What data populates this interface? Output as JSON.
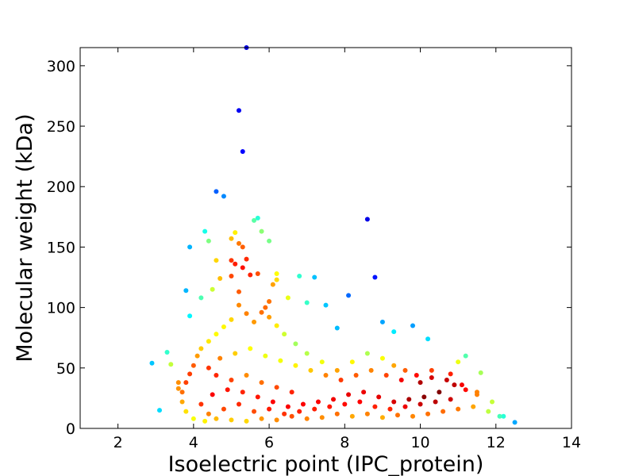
{
  "chart_data": {
    "type": "scatter",
    "title": "",
    "xlabel": "Isoelectric point (IPC_protein)",
    "ylabel": "Molecular weight (kDa)",
    "xlim": [
      1,
      14
    ],
    "ylim": [
      0,
      315
    ],
    "xticks": [
      2,
      4,
      6,
      8,
      10,
      12,
      14
    ],
    "yticks": [
      0,
      50,
      100,
      150,
      200,
      250,
      300
    ],
    "grid": false,
    "legend": "none",
    "colormap": "jet (point density)",
    "points": [
      [
        5.4,
        315
      ],
      [
        5.2,
        263
      ],
      [
        5.3,
        229
      ],
      [
        4.6,
        196
      ],
      [
        4.8,
        192
      ],
      [
        5.7,
        174
      ],
      [
        5.6,
        172
      ],
      [
        8.6,
        173
      ],
      [
        5.8,
        163
      ],
      [
        4.3,
        163
      ],
      [
        5.1,
        162
      ],
      [
        5.0,
        157
      ],
      [
        4.4,
        155
      ],
      [
        6.0,
        155
      ],
      [
        5.2,
        153
      ],
      [
        3.9,
        150
      ],
      [
        5.3,
        150
      ],
      [
        4.6,
        139
      ],
      [
        5.0,
        139
      ],
      [
        5.4,
        140
      ],
      [
        5.1,
        136
      ],
      [
        5.3,
        133
      ],
      [
        6.2,
        128
      ],
      [
        5.5,
        127
      ],
      [
        5.7,
        128
      ],
      [
        6.8,
        126
      ],
      [
        7.2,
        125
      ],
      [
        8.8,
        125
      ],
      [
        4.7,
        124
      ],
      [
        5.0,
        126
      ],
      [
        6.2,
        123
      ],
      [
        6.1,
        119
      ],
      [
        3.8,
        114
      ],
      [
        4.5,
        115
      ],
      [
        5.2,
        113
      ],
      [
        8.1,
        110
      ],
      [
        6.0,
        105
      ],
      [
        7.5,
        102
      ],
      [
        6.5,
        108
      ],
      [
        7.0,
        104
      ],
      [
        4.2,
        108
      ],
      [
        5.9,
        100
      ],
      [
        3.9,
        93
      ],
      [
        9.0,
        88
      ],
      [
        9.8,
        85
      ],
      [
        7.8,
        83
      ],
      [
        10.2,
        74
      ],
      [
        9.3,
        80
      ],
      [
        3.3,
        63
      ],
      [
        3.4,
        53
      ],
      [
        2.9,
        54
      ],
      [
        3.6,
        38
      ],
      [
        3.6,
        33
      ],
      [
        3.1,
        15
      ],
      [
        12.5,
        5
      ],
      [
        12.2,
        10
      ],
      [
        11.6,
        46
      ],
      [
        11.2,
        60
      ],
      [
        11.0,
        55
      ],
      [
        10.8,
        45
      ],
      [
        10.3,
        42
      ],
      [
        10.0,
        38
      ],
      [
        9.6,
        48
      ],
      [
        9.3,
        52
      ],
      [
        9.0,
        58
      ],
      [
        8.6,
        62
      ],
      [
        8.2,
        55
      ],
      [
        7.8,
        48
      ],
      [
        7.4,
        55
      ],
      [
        7.0,
        62
      ],
      [
        6.7,
        70
      ],
      [
        6.4,
        78
      ],
      [
        6.2,
        85
      ],
      [
        6.0,
        92
      ],
      [
        5.8,
        96
      ],
      [
        5.6,
        88
      ],
      [
        5.4,
        95
      ],
      [
        5.2,
        102
      ],
      [
        5.0,
        90
      ],
      [
        4.8,
        84
      ],
      [
        4.6,
        78
      ],
      [
        4.4,
        72
      ],
      [
        4.2,
        66
      ],
      [
        4.1,
        60
      ],
      [
        4.0,
        52
      ],
      [
        3.9,
        45
      ],
      [
        3.8,
        38
      ],
      [
        3.7,
        30
      ],
      [
        3.7,
        22
      ],
      [
        3.8,
        14
      ],
      [
        4.0,
        8
      ],
      [
        4.3,
        6
      ],
      [
        4.6,
        8
      ],
      [
        5.0,
        7
      ],
      [
        5.4,
        6
      ],
      [
        5.8,
        8
      ],
      [
        6.2,
        7
      ],
      [
        6.6,
        10
      ],
      [
        7.0,
        8
      ],
      [
        7.4,
        9
      ],
      [
        7.8,
        12
      ],
      [
        8.2,
        10
      ],
      [
        8.6,
        12
      ],
      [
        9.0,
        9
      ],
      [
        9.4,
        11
      ],
      [
        9.8,
        10
      ],
      [
        10.2,
        12
      ],
      [
        10.6,
        14
      ],
      [
        11.0,
        16
      ],
      [
        11.4,
        18
      ],
      [
        11.8,
        14
      ],
      [
        12.1,
        10
      ],
      [
        11.9,
        22
      ],
      [
        11.5,
        28
      ],
      [
        11.2,
        32
      ],
      [
        10.9,
        36
      ],
      [
        10.5,
        30
      ],
      [
        10.1,
        26
      ],
      [
        9.7,
        24
      ],
      [
        9.3,
        22
      ],
      [
        8.9,
        26
      ],
      [
        8.5,
        30
      ],
      [
        8.1,
        28
      ],
      [
        7.7,
        24
      ],
      [
        7.3,
        22
      ],
      [
        6.9,
        20
      ],
      [
        6.5,
        18
      ],
      [
        6.1,
        22
      ],
      [
        5.7,
        26
      ],
      [
        5.3,
        30
      ],
      [
        4.9,
        32
      ],
      [
        4.5,
        28
      ],
      [
        4.2,
        20
      ],
      [
        4.4,
        12
      ],
      [
        4.8,
        16
      ],
      [
        5.2,
        20
      ],
      [
        5.6,
        14
      ],
      [
        6.0,
        16
      ],
      [
        6.4,
        12
      ],
      [
        6.8,
        14
      ],
      [
        7.2,
        16
      ],
      [
        7.6,
        18
      ],
      [
        8.0,
        20
      ],
      [
        8.4,
        22
      ],
      [
        8.8,
        18
      ],
      [
        9.2,
        16
      ],
      [
        9.6,
        18
      ],
      [
        10.0,
        20
      ],
      [
        10.4,
        22
      ],
      [
        10.8,
        24
      ],
      [
        5.0,
        40
      ],
      [
        5.4,
        44
      ],
      [
        5.8,
        38
      ],
      [
        6.2,
        34
      ],
      [
        6.6,
        30
      ],
      [
        4.6,
        44
      ],
      [
        4.4,
        50
      ],
      [
        4.7,
        58
      ],
      [
        5.1,
        62
      ],
      [
        5.5,
        66
      ],
      [
        5.9,
        60
      ],
      [
        6.3,
        56
      ],
      [
        6.7,
        52
      ],
      [
        7.1,
        48
      ],
      [
        7.5,
        44
      ],
      [
        7.9,
        40
      ],
      [
        8.3,
        44
      ],
      [
        8.7,
        48
      ],
      [
        9.1,
        44
      ],
      [
        9.5,
        40
      ],
      [
        9.9,
        44
      ],
      [
        10.3,
        48
      ],
      [
        10.7,
        40
      ],
      [
        11.1,
        36
      ],
      [
        11.5,
        30
      ]
    ]
  }
}
